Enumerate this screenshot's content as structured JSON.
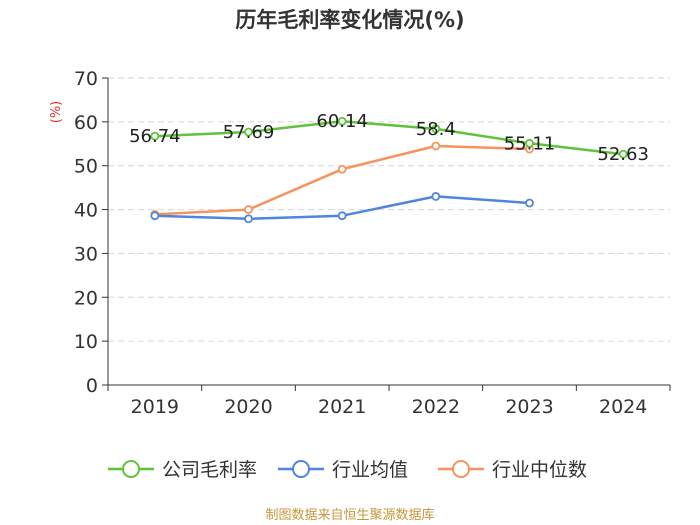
{
  "chart_data": {
    "type": "line",
    "title": "历年毛利率变化情况(%)",
    "ylabel": "(%)",
    "xlabel": "",
    "categories": [
      "2019",
      "2020",
      "2021",
      "2022",
      "2023",
      "2024"
    ],
    "ylim": [
      0,
      70
    ],
    "yticks": [
      0,
      10,
      20,
      30,
      40,
      50,
      60,
      70
    ],
    "grid": true,
    "legend_position": "bottom",
    "series": [
      {
        "name": "公司毛利率",
        "color": "#5fc33a",
        "values": [
          56.74,
          57.69,
          60.14,
          58.4,
          55.11,
          52.63
        ],
        "labels": [
          "56.74",
          "57.69",
          "60.14",
          "58.4",
          "55.11",
          "52.63"
        ]
      },
      {
        "name": "行业均值",
        "color": "#4f85dc",
        "values": [
          38.6,
          37.9,
          38.6,
          43.0,
          41.5,
          null
        ]
      },
      {
        "name": "行业中位数",
        "color": "#f6935e",
        "values": [
          38.9,
          40.0,
          49.2,
          54.5,
          53.8,
          null
        ]
      }
    ],
    "source": "制图数据来自恒生聚源数据库"
  }
}
